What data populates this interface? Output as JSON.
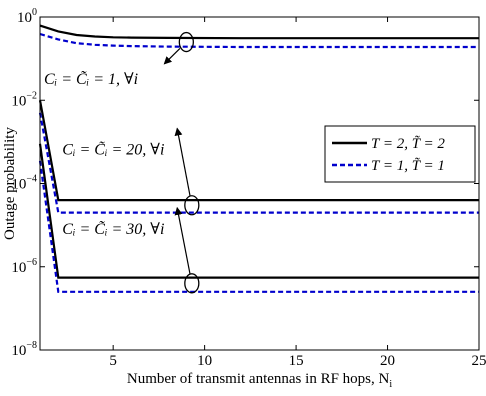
{
  "chart_data": {
    "type": "line",
    "xlabel": "Number of transmit antennas in RF hops, N",
    "xlabel_sub": "i",
    "ylabel": "Outage probability",
    "xlim": [
      1,
      25
    ],
    "ylim": [
      1e-08,
      1
    ],
    "yscale": "log",
    "xticks": [
      5,
      10,
      15,
      20,
      25
    ],
    "yticks": [
      {
        "value": 1e-08,
        "base": "10",
        "exp": "−8"
      },
      {
        "value": 1e-06,
        "base": "10",
        "exp": "−6"
      },
      {
        "value": 0.0001,
        "base": "10",
        "exp": "−4"
      },
      {
        "value": 0.01,
        "base": "10",
        "exp": "−2"
      },
      {
        "value": 1,
        "base": "10",
        "exp": "0"
      }
    ],
    "grid": false,
    "legend_position": "top-right",
    "series": [
      {
        "name": "T = 2, T̃ = 2",
        "style": "solid",
        "color": "#000000",
        "group": "C=1",
        "points": [
          [
            1,
            0.62
          ],
          [
            2,
            0.45
          ],
          [
            3,
            0.37
          ],
          [
            4,
            0.34
          ],
          [
            5,
            0.325
          ],
          [
            6,
            0.32
          ],
          [
            8,
            0.315
          ],
          [
            12,
            0.31
          ],
          [
            25,
            0.31
          ]
        ]
      },
      {
        "name": "T = 1, T̃ = 1",
        "style": "dashed",
        "color": "#0000cc",
        "group": "C=1",
        "points": [
          [
            1,
            0.39
          ],
          [
            2,
            0.29
          ],
          [
            3,
            0.235
          ],
          [
            4,
            0.215
          ],
          [
            5,
            0.205
          ],
          [
            6,
            0.2
          ],
          [
            8,
            0.195
          ],
          [
            12,
            0.19
          ],
          [
            25,
            0.19
          ]
        ]
      },
      {
        "name": "T = 2, T̃ = 2",
        "style": "solid",
        "color": "#000000",
        "group": "C=20",
        "points": [
          [
            1,
            0.01
          ],
          [
            2,
            4e-05
          ],
          [
            25,
            4e-05
          ]
        ]
      },
      {
        "name": "T = 1, T̃ = 1",
        "style": "dashed",
        "color": "#0000cc",
        "group": "C=20",
        "points": [
          [
            1,
            0.005
          ],
          [
            2,
            2e-05
          ],
          [
            25,
            2e-05
          ]
        ]
      },
      {
        "name": "T = 2, T̃ = 2",
        "style": "solid",
        "color": "#000000",
        "group": "C=30",
        "points": [
          [
            1,
            0.0009
          ],
          [
            2,
            5.5e-07
          ],
          [
            25,
            5.5e-07
          ]
        ]
      },
      {
        "name": "T = 1, T̃ = 1",
        "style": "dashed",
        "color": "#0000cc",
        "group": "C=30",
        "points": [
          [
            1,
            0.00035
          ],
          [
            2,
            2.5e-07
          ],
          [
            25,
            2.5e-07
          ]
        ]
      }
    ],
    "legend": [
      {
        "label": "T = 2, T̃ = 2",
        "style": "solid",
        "color": "#000000"
      },
      {
        "label": "T = 1, T̃ = 1",
        "style": "dashed",
        "color": "#0000cc"
      }
    ],
    "annotations": [
      {
        "text": "Cᵢ = C̃ᵢ = 1, ∀i",
        "ellipse_at": [
          9,
          0.25
        ],
        "arrow_to": [
          7.8,
          0.075
        ],
        "label_at": [
          1,
          0.032
        ]
      },
      {
        "text": "Cᵢ = C̃ᵢ = 20, ∀i",
        "ellipse_at": [
          9.3,
          3e-05
        ],
        "arrow_to": [
          8.5,
          0.0021
        ],
        "label_at": [
          2,
          0.00065
        ]
      },
      {
        "text": "Cᵢ = C̃ᵢ = 30, ∀i",
        "ellipse_at": [
          9.3,
          4e-07
        ],
        "arrow_to": [
          8.5,
          2.6e-05
        ],
        "label_at": [
          2,
          8e-06
        ]
      }
    ]
  }
}
